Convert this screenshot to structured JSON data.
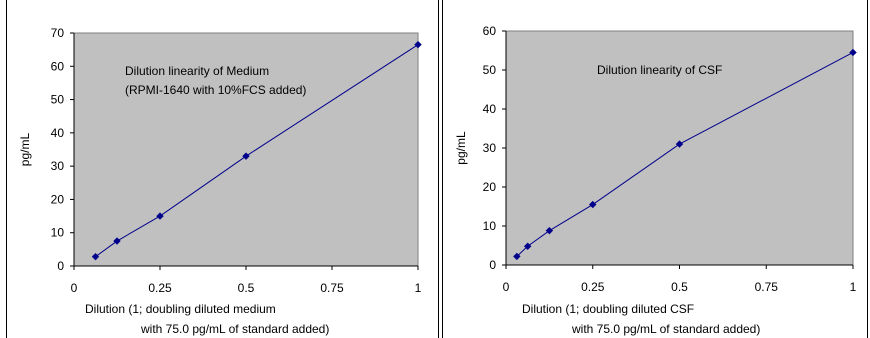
{
  "header_fragment": "y",
  "colors": {
    "plot_bg": "#c0c0c0",
    "line": "#00008b",
    "axis": "#000000",
    "page_bg": "#ffffff"
  },
  "chart_data": [
    {
      "type": "line",
      "annotation": [
        "Dilution linearity of Medium",
        "(RPMI-1640 with 10%FCS added)"
      ],
      "ylabel": "pg/mL",
      "xlabel": [
        "Dilution (1; doubling diluted medium",
        "with 75.0 pg/mL of standard added)"
      ],
      "xlim": [
        0,
        1
      ],
      "ylim": [
        0,
        70
      ],
      "xticks": [
        "0",
        "0.25",
        "0.5",
        "0.75",
        "1"
      ],
      "yticks": [
        "0",
        "10",
        "20",
        "30",
        "40",
        "50",
        "60",
        "70"
      ],
      "grid": false,
      "x": [
        0.0625,
        0.125,
        0.25,
        0.5,
        1
      ],
      "y": [
        2.8,
        7.5,
        15,
        33,
        66.5
      ]
    },
    {
      "type": "line",
      "annotation": [
        "Dilution linearity of CSF"
      ],
      "ylabel": "pg/mL",
      "xlabel": [
        "Dilution (1; doubling diluted CSF",
        "with 75.0 pg/mL of standard added)"
      ],
      "xlim": [
        0,
        1
      ],
      "ylim": [
        0,
        60
      ],
      "xticks": [
        "0",
        "0.25",
        "0.5",
        "0.75",
        "1"
      ],
      "yticks": [
        "0",
        "10",
        "20",
        "30",
        "40",
        "50",
        "60"
      ],
      "grid": false,
      "x": [
        0.03125,
        0.0625,
        0.125,
        0.25,
        0.5,
        1
      ],
      "y": [
        2.2,
        4.8,
        8.8,
        15.5,
        31,
        54.5
      ]
    }
  ]
}
